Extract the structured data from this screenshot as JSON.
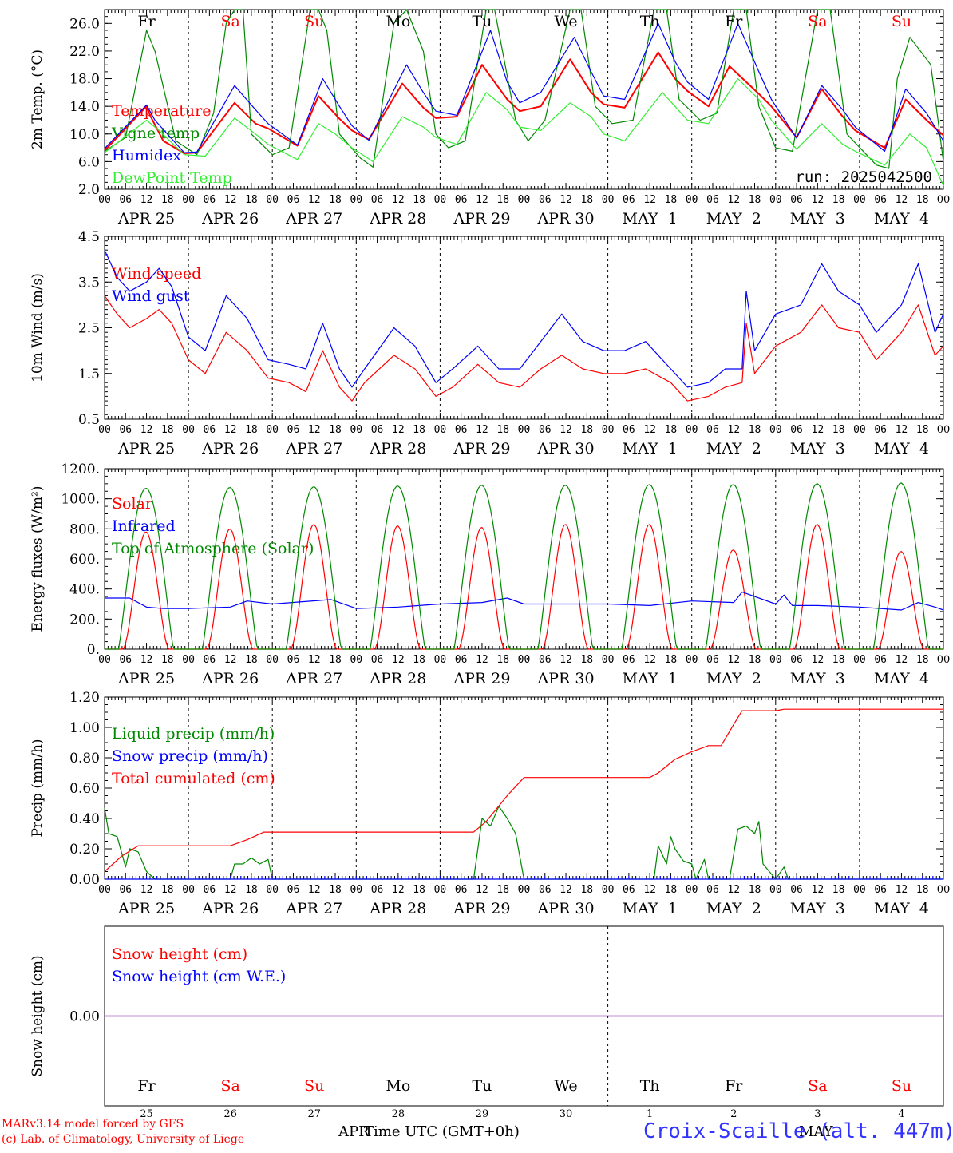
{
  "days": {
    "labels": [
      "APR 25",
      "APR 26",
      "APR 27",
      "APR 28",
      "APR 29",
      "APR 30",
      "MAY  1",
      "MAY  2",
      "MAY  3",
      "MAY  4"
    ],
    "weekdays": [
      "Fr",
      "Sa",
      "Su",
      "Mo",
      "Tu",
      "We",
      "Th",
      "Fr",
      "Sa",
      "Su"
    ],
    "weekend_flags": [
      false,
      true,
      true,
      false,
      false,
      false,
      false,
      false,
      true,
      true
    ],
    "day_numbers": [
      "25",
      "26",
      "27",
      "28",
      "29",
      "30",
      "1",
      "2",
      "3",
      "4"
    ],
    "hour_ticks": [
      "00",
      "06",
      "12",
      "18"
    ],
    "final_tick": "00"
  },
  "colors": {
    "temperature": "#ff0000",
    "vigne": "#008800",
    "humidex": "#0000ff",
    "dewpoint": "#33ee33",
    "weekday": "#000000",
    "weekend": "#ff0000"
  },
  "panels": {
    "temp": {
      "ylabel": "2m Temp. (°C)",
      "ticks": [
        "2.0",
        "6.0",
        "10.0",
        "14.0",
        "18.0",
        "22.0",
        "26.0"
      ],
      "legend": [
        "Temperature",
        "Vigne temp",
        "Humidex",
        "DewPoint Temp"
      ],
      "run": "run: 2025042500"
    },
    "wind": {
      "ylabel": "10m Wind (m/s)",
      "ticks": [
        "0.5",
        "1.5",
        "2.5",
        "3.5",
        "4.5"
      ],
      "legend": [
        "Wind speed",
        "Wind gust"
      ]
    },
    "energy": {
      "ylabel": "Energy fluxes (W/m²)",
      "ticks": [
        "0.",
        "200.",
        "400.",
        "600.",
        "800.",
        "1000.",
        "1200."
      ],
      "legend": [
        "Solar",
        "Infrared",
        "Top of Atmosphere (Solar)"
      ]
    },
    "precip": {
      "ylabel": "Precip (mm/h)",
      "ticks": [
        "0.00",
        "0.20",
        "0.40",
        "0.60",
        "0.80",
        "1.00",
        "1.20"
      ],
      "legend": [
        "Liquid precip (mm/h)",
        "Snow precip (mm/h)",
        "Total cumulated (cm)"
      ]
    },
    "snow": {
      "ylabel": "Snow height (cm)",
      "ticks": [
        "0.00"
      ],
      "legend": [
        "Snow height (cm)",
        "Snow height (cm W.E.)"
      ]
    }
  },
  "footer": {
    "credit1": "MARv3.14 model forced by GFS",
    "credit2": "(c) Lab. of Climatology, University of Liege",
    "month_left": "APR",
    "month_right": "MAY",
    "xlabel": "Time UTC (GMT+0h)",
    "station": "Croix-Scaille (alt. 447m)"
  },
  "chart_data": [
    {
      "type": "line",
      "title": "",
      "ylabel": "2m Temp. (°C)",
      "ylim": [
        2,
        28
      ],
      "x_unit": "day index from 2025-04-25 00 UTC",
      "series": [
        {
          "name": "Temperature",
          "color": "#ff0000",
          "x": [
            0,
            0.5,
            0.55,
            0.7,
            0.95,
            1.1,
            1.55,
            1.8,
            1.95,
            2.3,
            2.55,
            2.8,
            2.95,
            3.15,
            3.55,
            3.8,
            3.95,
            4.2,
            4.5,
            4.8,
            4.95,
            5.2,
            5.55,
            5.8,
            5.95,
            6.2,
            6.6,
            6.8,
            6.95,
            7.2,
            7.45,
            7.8,
            7.95,
            8.25,
            8.55,
            8.8,
            8.95,
            9.3,
            9.55,
            9.8,
            10
          ],
          "y": [
            7.6,
            14.0,
            12.5,
            9.0,
            7.2,
            7.3,
            14.5,
            11.5,
            10.8,
            8.3,
            15.5,
            12.2,
            10.5,
            9.2,
            17.3,
            13.8,
            12.3,
            12.5,
            20.0,
            15.0,
            13.3,
            14.0,
            20.8,
            16.0,
            14.3,
            13.8,
            21.8,
            18.0,
            16.2,
            14.0,
            19.8,
            15.8,
            14.0,
            9.5,
            16.5,
            12.5,
            10.5,
            8.0,
            15.0,
            12.0,
            9.8
          ]
        },
        {
          "name": "Vigne temp",
          "color": "#008800",
          "x": [
            0,
            0.25,
            0.5,
            0.6,
            0.85,
            1.1,
            1.3,
            1.45,
            1.55,
            1.65,
            1.75,
            2.0,
            2.2,
            2.45,
            2.55,
            2.65,
            2.8,
            3.05,
            3.2,
            3.45,
            3.6,
            3.8,
            3.95,
            4.1,
            4.3,
            4.55,
            4.65,
            4.9,
            5.05,
            5.25,
            5.55,
            5.68,
            5.85,
            6.05,
            6.3,
            6.55,
            6.7,
            6.85,
            7.1,
            7.3,
            7.5,
            7.65,
            7.8,
            8.0,
            8.2,
            8.5,
            8.65,
            8.85,
            9.2,
            9.35,
            9.45,
            9.6,
            9.85,
            10
          ],
          "y": [
            7.5,
            9.5,
            25.0,
            22.0,
            9.0,
            7.0,
            13.0,
            26.0,
            29.0,
            28.0,
            10.0,
            7.0,
            8.0,
            28.0,
            29.0,
            25.0,
            10.0,
            6.5,
            5.2,
            26.0,
            29.0,
            22.0,
            10.0,
            8.0,
            9.0,
            29.0,
            29.0,
            12.0,
            9.0,
            12.0,
            29.0,
            29.0,
            14.0,
            11.5,
            12.0,
            29.0,
            29.0,
            15.0,
            12.0,
            13.0,
            29.0,
            29.0,
            14.0,
            8.0,
            7.5,
            29.0,
            29.0,
            10.0,
            5.5,
            5.0,
            18.0,
            24.0,
            20.0,
            6.0
          ]
        },
        {
          "name": "Humidex",
          "color": "#0000ff",
          "x": [
            0,
            0.5,
            0.6,
            0.95,
            1.1,
            1.55,
            1.8,
            1.95,
            2.3,
            2.6,
            2.8,
            2.95,
            3.15,
            3.6,
            3.8,
            3.95,
            4.2,
            4.6,
            4.8,
            4.95,
            5.2,
            5.6,
            5.8,
            5.95,
            6.2,
            6.6,
            6.8,
            6.95,
            7.2,
            7.55,
            7.8,
            7.95,
            8.25,
            8.55,
            8.8,
            8.95,
            9.3,
            9.55,
            9.8,
            10
          ],
          "y": [
            7.9,
            14.2,
            12.0,
            7.3,
            7.4,
            17.0,
            13.5,
            11.5,
            8.4,
            18.0,
            14.0,
            11.2,
            9.1,
            20.0,
            16.0,
            13.3,
            12.7,
            25.0,
            17.5,
            14.5,
            16.0,
            24.0,
            19.0,
            15.5,
            15.0,
            26.0,
            20.5,
            17.5,
            15.0,
            26.0,
            19.0,
            15.0,
            9.4,
            17.0,
            13.5,
            11.0,
            7.5,
            16.5,
            13.0,
            9.0
          ]
        },
        {
          "name": "DewPoint Temp",
          "color": "#33ee33",
          "x": [
            0,
            0.5,
            0.65,
            0.95,
            1.2,
            1.55,
            1.8,
            1.95,
            2.3,
            2.55,
            2.75,
            2.95,
            3.2,
            3.55,
            3.8,
            3.95,
            4.2,
            4.55,
            4.8,
            4.95,
            5.2,
            5.55,
            5.8,
            5.95,
            6.2,
            6.65,
            6.8,
            6.95,
            7.2,
            7.55,
            7.8,
            7.95,
            8.25,
            8.55,
            8.8,
            8.95,
            9.3,
            9.6,
            9.8,
            10
          ],
          "y": [
            7.3,
            12.0,
            10.5,
            7.0,
            6.8,
            12.3,
            10.0,
            8.5,
            6.3,
            11.5,
            10.0,
            8.0,
            6.0,
            12.5,
            11.0,
            9.5,
            8.5,
            16.0,
            13.5,
            11.0,
            10.5,
            14.5,
            12.5,
            10.0,
            9.0,
            16.0,
            14.0,
            12.0,
            11.5,
            18.0,
            15.0,
            12.0,
            7.8,
            11.5,
            8.5,
            7.5,
            5.5,
            10.0,
            8.0,
            2.5
          ]
        }
      ]
    },
    {
      "type": "line",
      "title": "",
      "ylabel": "10m Wind (m/s)",
      "ylim": [
        0.5,
        4.5
      ],
      "x_unit": "day index from 2025-04-25 00 UTC",
      "series": [
        {
          "name": "Wind speed",
          "color": "#ff0000",
          "x": [
            0,
            0.15,
            0.3,
            0.5,
            0.65,
            0.8,
            1.0,
            1.2,
            1.45,
            1.7,
            1.95,
            2.2,
            2.4,
            2.6,
            2.8,
            2.95,
            3.1,
            3.45,
            3.7,
            3.95,
            4.15,
            4.45,
            4.7,
            4.95,
            5.2,
            5.45,
            5.7,
            5.95,
            6.2,
            6.45,
            6.75,
            6.95,
            7.2,
            7.4,
            7.6,
            7.65,
            7.75,
            8.0,
            8.3,
            8.55,
            8.75,
            9.0,
            9.2,
            9.5,
            9.7,
            9.9,
            10
          ],
          "y": [
            3.2,
            2.8,
            2.5,
            2.7,
            2.9,
            2.6,
            1.8,
            1.5,
            2.4,
            2.0,
            1.4,
            1.3,
            1.1,
            2.0,
            1.2,
            0.9,
            1.3,
            1.9,
            1.6,
            1.0,
            1.2,
            1.7,
            1.3,
            1.2,
            1.6,
            1.9,
            1.6,
            1.5,
            1.5,
            1.6,
            1.3,
            0.9,
            1.0,
            1.2,
            1.3,
            2.6,
            1.5,
            2.1,
            2.4,
            3.0,
            2.5,
            2.4,
            1.8,
            2.4,
            3.0,
            1.9,
            2.1
          ]
        },
        {
          "name": "Wind gust",
          "color": "#0000ff",
          "x": [
            0,
            0.15,
            0.3,
            0.5,
            0.65,
            0.8,
            1.0,
            1.2,
            1.45,
            1.7,
            1.95,
            2.2,
            2.4,
            2.6,
            2.8,
            2.95,
            3.1,
            3.45,
            3.7,
            3.95,
            4.15,
            4.45,
            4.7,
            4.95,
            5.2,
            5.45,
            5.7,
            5.95,
            6.2,
            6.45,
            6.75,
            6.95,
            7.2,
            7.4,
            7.6,
            7.65,
            7.75,
            8.0,
            8.3,
            8.55,
            8.75,
            9.0,
            9.2,
            9.5,
            9.7,
            9.9,
            10
          ],
          "y": [
            4.2,
            3.6,
            3.3,
            3.5,
            3.8,
            3.4,
            2.3,
            2.0,
            3.2,
            2.7,
            1.8,
            1.7,
            1.6,
            2.6,
            1.6,
            1.2,
            1.6,
            2.5,
            2.1,
            1.3,
            1.6,
            2.1,
            1.6,
            1.6,
            2.2,
            2.8,
            2.2,
            2.0,
            2.0,
            2.2,
            1.6,
            1.2,
            1.3,
            1.6,
            1.6,
            3.3,
            2.0,
            2.8,
            3.0,
            3.9,
            3.3,
            3.0,
            2.4,
            3.0,
            3.9,
            2.4,
            2.8
          ]
        }
      ]
    },
    {
      "type": "line",
      "title": "",
      "ylabel": "Energy fluxes (W/m²)",
      "ylim": [
        0,
        1200
      ],
      "x_unit": "day index from 2025-04-25 00 UTC",
      "series": [
        {
          "name": "Solar",
          "color": "#ff0000",
          "peaks": [
            780,
            800,
            830,
            820,
            810,
            830,
            830,
            660,
            830,
            650
          ]
        },
        {
          "name": "Infrared",
          "color": "#0000ff",
          "x": [
            0,
            0.3,
            0.5,
            0.7,
            1.0,
            1.5,
            1.7,
            2.0,
            2.7,
            3.0,
            3.5,
            4.0,
            4.5,
            4.8,
            5.0,
            5.5,
            6.0,
            6.5,
            7.0,
            7.5,
            7.6,
            7.7,
            8.0,
            8.1,
            8.2,
            8.5,
            9.0,
            9.5,
            9.7,
            9.9,
            10
          ],
          "y": [
            340,
            340,
            280,
            270,
            270,
            280,
            320,
            300,
            330,
            270,
            280,
            300,
            310,
            340,
            300,
            300,
            300,
            290,
            320,
            310,
            380,
            360,
            300,
            360,
            290,
            290,
            280,
            260,
            310,
            280,
            260
          ]
        },
        {
          "name": "Top of Atmosphere (Solar)",
          "color": "#008800",
          "peaks": [
            1070,
            1075,
            1080,
            1085,
            1090,
            1090,
            1095,
            1095,
            1100,
            1105
          ]
        }
      ]
    },
    {
      "type": "line",
      "title": "",
      "ylabel": "Precip (mm/h)",
      "ylim": [
        0,
        1.2
      ],
      "x_unit": "day index from 2025-04-25 00 UTC",
      "series": [
        {
          "name": "Liquid precip (mm/h)",
          "color": "#008800",
          "x": [
            0,
            0.05,
            0.15,
            0.25,
            0.3,
            0.4,
            0.5,
            0.6,
            1.5,
            1.55,
            1.65,
            1.75,
            1.85,
            1.95,
            2.0,
            4.4,
            4.5,
            4.6,
            4.7,
            4.8,
            4.9,
            5.0,
            6.55,
            6.6,
            6.7,
            6.75,
            6.8,
            6.9,
            7.0,
            7.05,
            7.15,
            7.2,
            7.45,
            7.55,
            7.65,
            7.75,
            7.8,
            7.85,
            8.0,
            8.1,
            8.15,
            8.2,
            10
          ],
          "y": [
            0.47,
            0.3,
            0.28,
            0.08,
            0.2,
            0.18,
            0.05,
            0,
            0,
            0.1,
            0.1,
            0.14,
            0.1,
            0.13,
            0,
            0,
            0.4,
            0.35,
            0.48,
            0.4,
            0.3,
            0,
            0,
            0.22,
            0.1,
            0.28,
            0.2,
            0.12,
            0.1,
            0,
            0.13,
            0,
            0,
            0.33,
            0.35,
            0.3,
            0.38,
            0.1,
            0,
            0.08,
            0,
            0,
            0
          ]
        },
        {
          "name": "Snow precip (mm/h)",
          "color": "#0000ff",
          "x": [
            0,
            10
          ],
          "y": [
            0,
            0
          ]
        },
        {
          "name": "Total cumulated (cm)",
          "color": "#ff0000",
          "x": [
            0,
            0.2,
            0.4,
            1.0,
            1.5,
            1.7,
            1.9,
            3.0,
            4.4,
            4.55,
            4.8,
            5.0,
            6.5,
            6.6,
            6.8,
            7.0,
            7.2,
            7.35,
            7.5,
            7.6,
            8.0,
            8.1,
            10
          ],
          "y": [
            0.05,
            0.15,
            0.22,
            0.22,
            0.22,
            0.26,
            0.31,
            0.31,
            0.31,
            0.38,
            0.55,
            0.67,
            0.67,
            0.7,
            0.79,
            0.84,
            0.88,
            0.88,
            1.02,
            1.11,
            1.11,
            1.12,
            1.12
          ]
        }
      ]
    },
    {
      "type": "line",
      "title": "",
      "ylabel": "Snow height (cm)",
      "ylim": [
        -1,
        1
      ],
      "x_unit": "day index from 2025-04-25 00 UTC",
      "series": [
        {
          "name": "Snow height (cm)",
          "color": "#ff0000",
          "x": [
            0,
            10
          ],
          "y": [
            0,
            0
          ]
        },
        {
          "name": "Snow height (cm W.E.)",
          "color": "#0000ff",
          "x": [
            0,
            10
          ],
          "y": [
            0,
            0
          ]
        }
      ]
    }
  ]
}
